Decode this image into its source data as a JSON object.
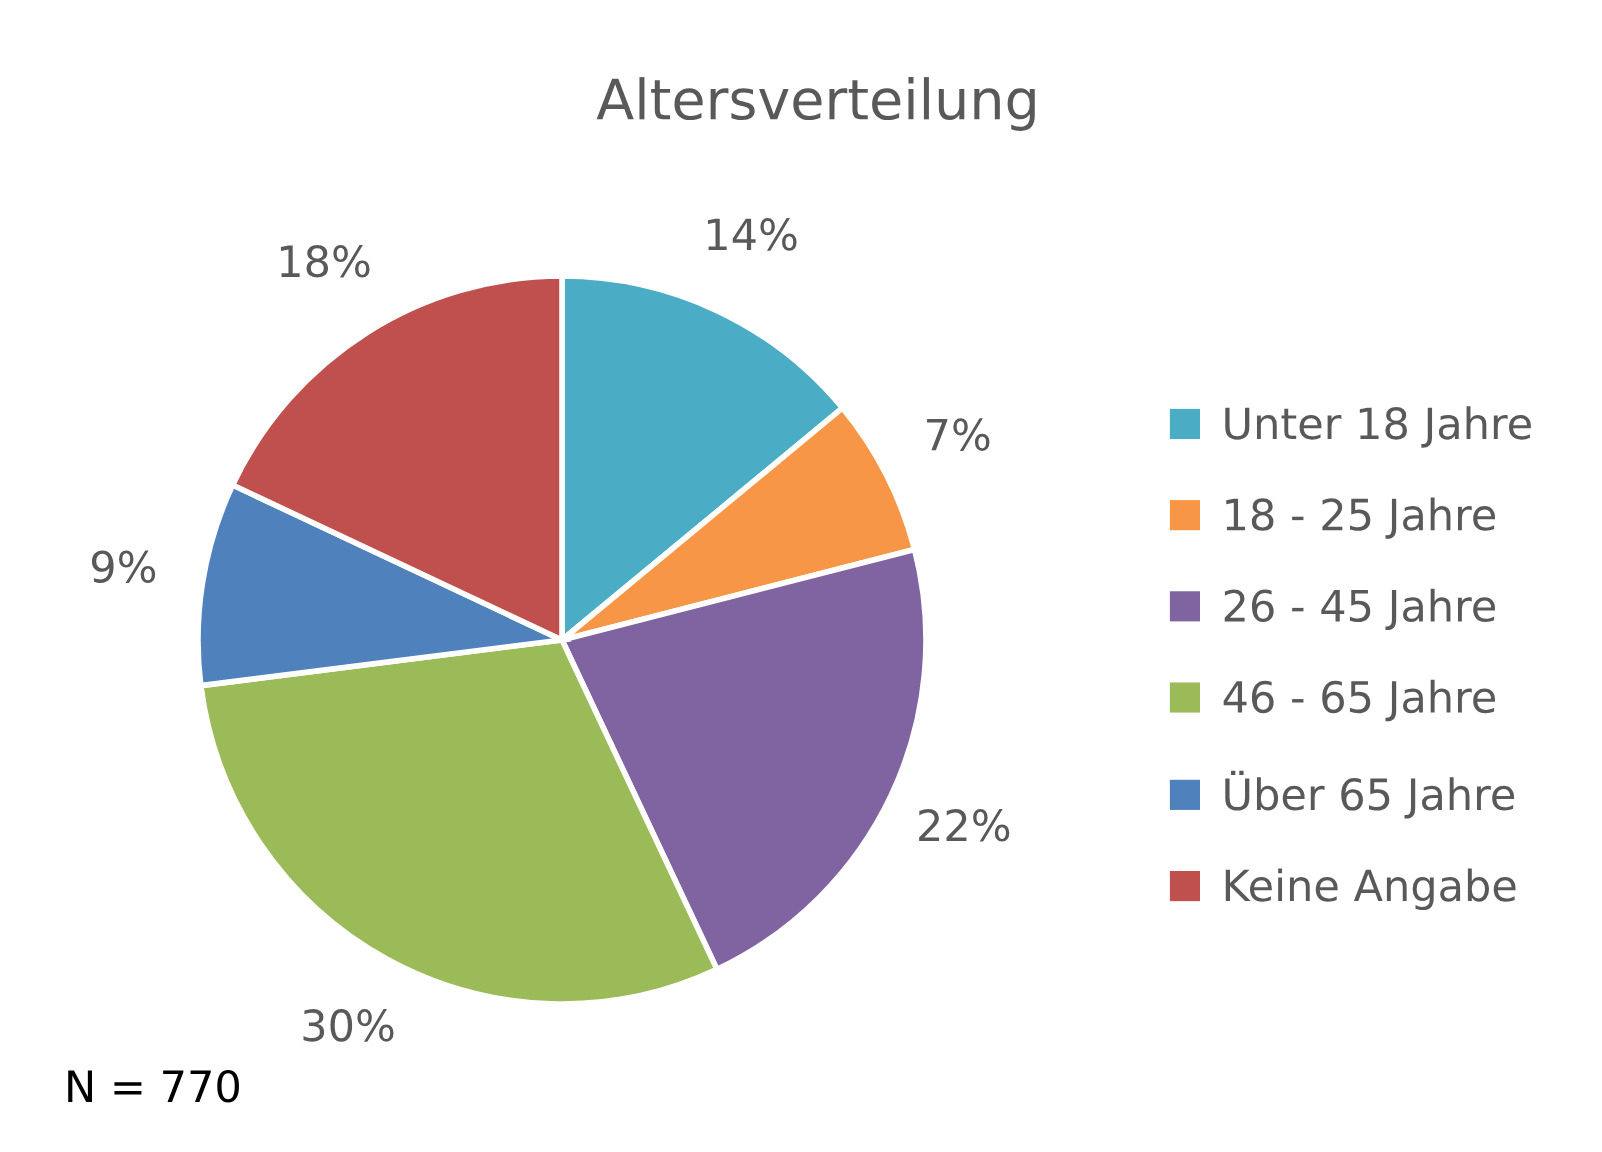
{
  "chart_data": {
    "type": "pie",
    "title": "Altersverteilung",
    "categories": [
      "Unter 18 Jahre",
      "18 - 25 Jahre",
      "26 - 45 Jahre",
      "46 - 65 Jahre",
      "Über 65 Jahre",
      "Keine Angabe"
    ],
    "values": [
      14,
      7,
      22,
      30,
      9,
      18
    ],
    "value_labels": [
      "14%",
      "7%",
      "22%",
      "30%",
      "9%",
      "18%"
    ],
    "colors": [
      "#4bacc6",
      "#f79646",
      "#8064a2",
      "#9bbb59",
      "#4f81bd",
      "#c0504d"
    ],
    "legend": "right",
    "annotations": [
      "N = 770"
    ]
  }
}
